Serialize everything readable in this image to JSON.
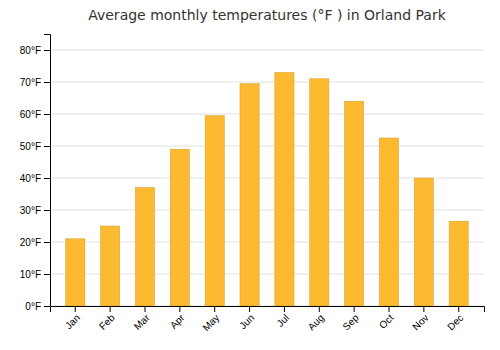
{
  "chart_data": {
    "type": "bar",
    "title": "Average monthly temperatures (°F ) in Orland Park",
    "categories": [
      "Jan",
      "Feb",
      "Mar",
      "Apr",
      "May",
      "Jun",
      "Jul",
      "Aug",
      "Sep",
      "Oct",
      "Nov",
      "Dec"
    ],
    "values": [
      21,
      25,
      37,
      49,
      59.5,
      69.5,
      73,
      71,
      64,
      52.5,
      40,
      26.5
    ],
    "color": "#FDB930",
    "ylim": [
      0,
      85
    ],
    "yticks": [
      {
        "value": 0,
        "label": "0°F"
      },
      {
        "value": 10,
        "label": "10°F"
      },
      {
        "value": 20,
        "label": "20°F"
      },
      {
        "value": 30,
        "label": "30°F"
      },
      {
        "value": 40,
        "label": "40°F"
      },
      {
        "value": 50,
        "label": "50°F"
      },
      {
        "value": 60,
        "label": "60°F"
      },
      {
        "value": 70,
        "label": "70°F"
      },
      {
        "value": 80,
        "label": "80°F"
      }
    ],
    "grid": true
  }
}
